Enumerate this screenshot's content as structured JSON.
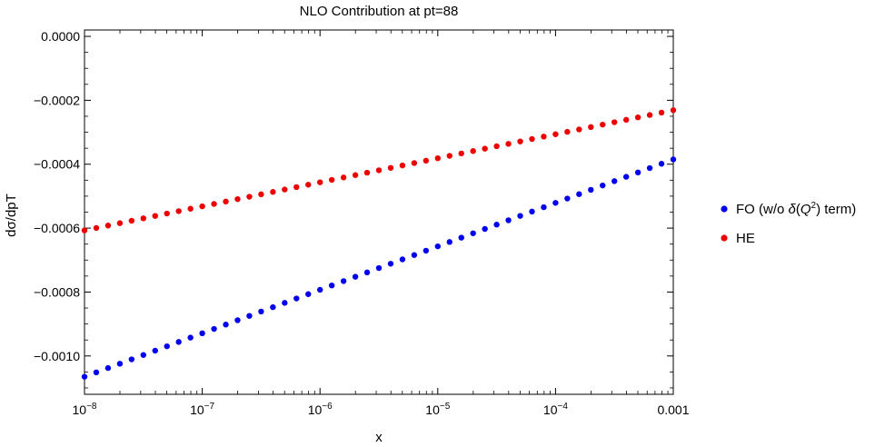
{
  "chart_data": {
    "type": "scatter",
    "title": "NLO Contribution at pt=88",
    "xlabel": "x",
    "ylabel": "dσ/dpT",
    "x_scale": "log",
    "xlim": [
      1e-08,
      0.001
    ],
    "ylim": [
      -0.00112,
      2e-05
    ],
    "x_ticks": [
      {
        "value": 1e-08,
        "base": "10",
        "exp": "−8"
      },
      {
        "value": 1e-07,
        "base": "10",
        "exp": "−7"
      },
      {
        "value": 1e-06,
        "base": "10",
        "exp": "−6"
      },
      {
        "value": 1e-05,
        "base": "10",
        "exp": "−5"
      },
      {
        "value": 0.0001,
        "base": "10",
        "exp": "−4"
      },
      {
        "value": 0.001,
        "base": "0.001",
        "exp": ""
      }
    ],
    "y_ticks": [
      {
        "value": 0.0,
        "label": "0.0000"
      },
      {
        "value": -0.0002,
        "label": "−0.0002"
      },
      {
        "value": -0.0004,
        "label": "−0.0004"
      },
      {
        "value": -0.0006,
        "label": "−0.0006"
      },
      {
        "value": -0.0008,
        "label": "−0.0008"
      },
      {
        "value": -0.001,
        "label": "−0.0010"
      }
    ],
    "legend_position": "right",
    "point_count": 51,
    "series": [
      {
        "name": "FO (w/o δ(Q²) term)",
        "color": "#0000ee",
        "x": [
          1e-08,
          0.001
        ],
        "y": [
          -0.001065,
          -0.000385
        ]
      },
      {
        "name": "HE",
        "color": "#ee0000",
        "x": [
          1e-08,
          0.001
        ],
        "y": [
          -0.000607,
          -0.000231
        ]
      }
    ]
  },
  "legend": {
    "fo_label_main": "FO (w/o ",
    "fo_label_delta": "δ",
    "fo_label_paren_open": "(",
    "fo_label_q": "Q",
    "fo_label_sup": "2",
    "fo_label_tail": ") term)",
    "he_label": "HE"
  }
}
